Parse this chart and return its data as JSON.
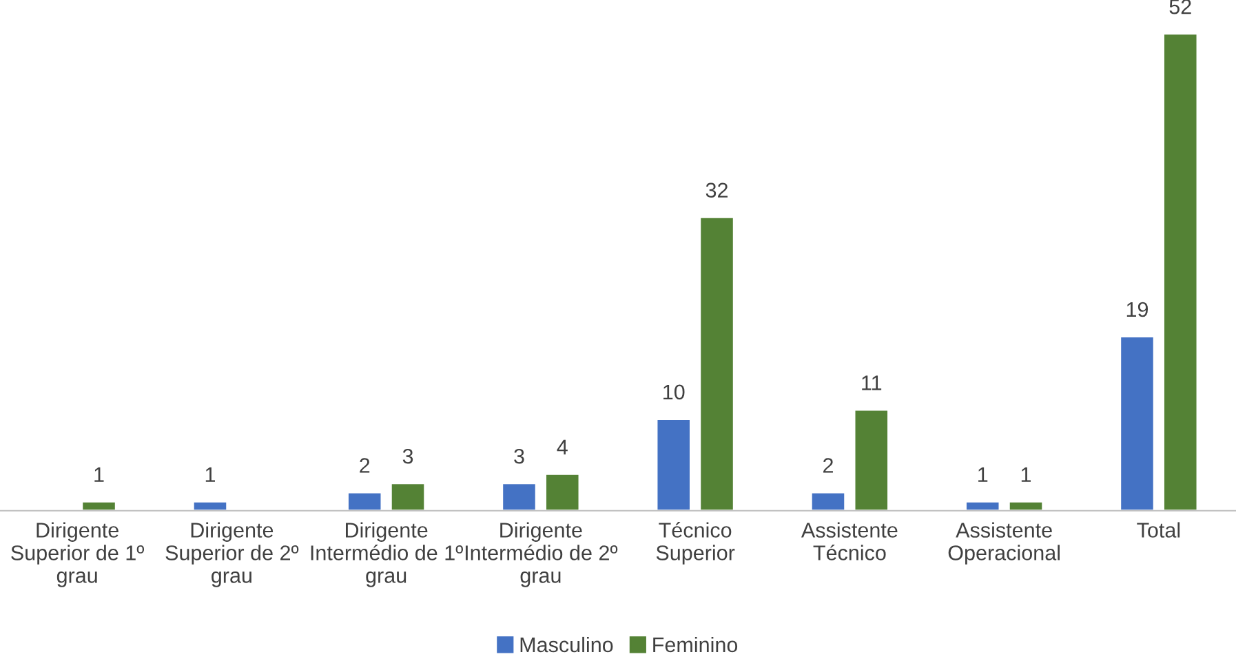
{
  "chart_data": {
    "type": "bar",
    "categories": [
      "Dirigente\nSuperior de 1º\ngrau",
      "Dirigente\nSuperior de 2º\ngrau",
      "Dirigente\nIntermédio de 1º\ngrau",
      "Dirigente\nIntermédio de 2º\ngrau",
      "Técnico\nSuperior",
      "Assistente\nTécnico",
      "Assistente\nOperacional",
      "Total"
    ],
    "series": [
      {
        "name": "Masculino",
        "color": "#4472c4",
        "values": [
          null,
          1,
          2,
          3,
          10,
          2,
          1,
          19
        ]
      },
      {
        "name": "Feminino",
        "color": "#548235",
        "values": [
          1,
          null,
          3,
          4,
          32,
          11,
          1,
          52
        ]
      }
    ],
    "data_labels": true,
    "legend": "bottom",
    "grid": false
  }
}
